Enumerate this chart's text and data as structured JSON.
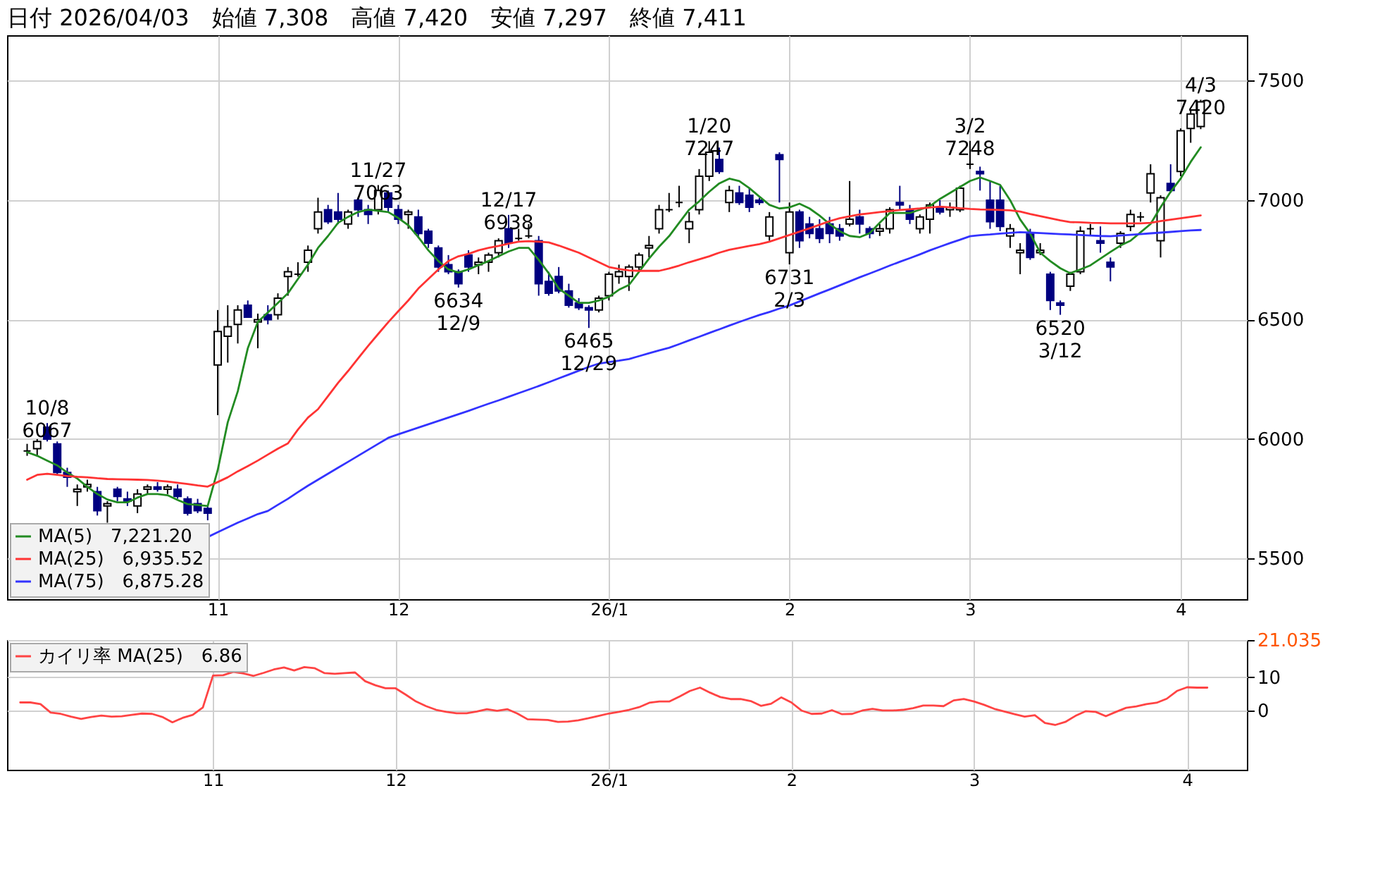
{
  "chart_data": [
    {
      "type": "candlestick",
      "title": "日付 2026/04/03　始値 7,308　高値 7,420　安値 7,297　終値 7,411",
      "categories": [
        null,
        null,
        null,
        null,
        null,
        null,
        null,
        null,
        null,
        null,
        null,
        null,
        null,
        null,
        null,
        null,
        null,
        null,
        null,
        "11",
        null,
        null,
        null,
        null,
        null,
        null,
        null,
        null,
        null,
        null,
        null,
        null,
        null,
        null,
        null,
        null,
        null,
        "12",
        null,
        null,
        null,
        null,
        null,
        null,
        null,
        null,
        null,
        null,
        null,
        null,
        null,
        null,
        null,
        null,
        null,
        null,
        null,
        null,
        "26/1",
        null,
        null,
        null,
        null,
        null,
        null,
        null,
        null,
        null,
        null,
        null,
        null,
        null,
        null,
        null,
        null,
        null,
        "2",
        null,
        null,
        null,
        null,
        null,
        null,
        null,
        null,
        null,
        null,
        null,
        null,
        null,
        null,
        null,
        null,
        null,
        "3",
        null,
        null,
        null,
        null,
        null,
        null,
        null,
        null,
        null,
        null,
        null,
        null,
        null,
        null,
        null,
        null,
        null,
        null,
        null,
        null,
        "4",
        null,
        null
      ],
      "ohlc": [
        [
          5950,
          5980,
          5930,
          5950
        ],
        [
          5960,
          6000,
          5930,
          5990
        ],
        [
          6050,
          6067,
          5990,
          6000
        ],
        [
          5980,
          5990,
          5850,
          5860
        ],
        [
          5860,
          5880,
          5800,
          5840
        ],
        [
          5780,
          5810,
          5720,
          5790
        ],
        [
          5800,
          5830,
          5780,
          5810
        ],
        [
          5780,
          5800,
          5680,
          5700
        ],
        [
          5720,
          5740,
          5650,
          5730
        ],
        [
          5790,
          5800,
          5740,
          5760
        ],
        [
          5750,
          5780,
          5720,
          5740
        ],
        [
          5720,
          5790,
          5690,
          5770
        ],
        [
          5790,
          5810,
          5770,
          5800
        ],
        [
          5800,
          5820,
          5780,
          5790
        ],
        [
          5790,
          5810,
          5770,
          5800
        ],
        [
          5790,
          5810,
          5750,
          5760
        ],
        [
          5750,
          5760,
          5680,
          5690
        ],
        [
          5730,
          5750,
          5690,
          5700
        ],
        [
          5710,
          5720,
          5660,
          5690
        ],
        [
          6310,
          6540,
          6100,
          6450
        ],
        [
          6430,
          6560,
          6320,
          6470
        ],
        [
          6480,
          6560,
          6400,
          6540
        ],
        [
          6560,
          6580,
          6510,
          6510
        ],
        [
          6490,
          6525,
          6380,
          6500
        ],
        [
          6520,
          6560,
          6480,
          6500
        ],
        [
          6520,
          6610,
          6500,
          6590
        ],
        [
          6680,
          6720,
          6600,
          6700
        ],
        [
          6690,
          6740,
          6680,
          6690
        ],
        [
          6740,
          6810,
          6700,
          6790
        ],
        [
          6880,
          7010,
          6860,
          6950
        ],
        [
          6960,
          6980,
          6900,
          6910
        ],
        [
          6950,
          7030,
          6900,
          6920
        ],
        [
          6900,
          6960,
          6880,
          6950
        ],
        [
          7000,
          7010,
          6930,
          6960
        ],
        [
          6960,
          6980,
          6900,
          6940
        ],
        [
          6960,
          7063,
          6940,
          7040
        ],
        [
          7030,
          7040,
          6950,
          6970
        ],
        [
          6960,
          6980,
          6900,
          6920
        ],
        [
          6940,
          6960,
          6880,
          6950
        ],
        [
          6930,
          6960,
          6840,
          6860
        ],
        [
          6870,
          6880,
          6800,
          6820
        ],
        [
          6800,
          6810,
          6700,
          6720
        ],
        [
          6730,
          6770,
          6690,
          6700
        ],
        [
          6700,
          6710,
          6634,
          6650
        ],
        [
          6770,
          6790,
          6700,
          6720
        ],
        [
          6730,
          6760,
          6690,
          6740
        ],
        [
          6740,
          6780,
          6700,
          6770
        ],
        [
          6780,
          6840,
          6760,
          6830
        ],
        [
          6880,
          6938,
          6800,
          6820
        ],
        [
          6840,
          6880,
          6830,
          6840
        ],
        [
          6850,
          6900,
          6840,
          6850
        ],
        [
          6830,
          6850,
          6600,
          6650
        ],
        [
          6660,
          6700,
          6600,
          6610
        ],
        [
          6680,
          6720,
          6610,
          6620
        ],
        [
          6620,
          6650,
          6550,
          6560
        ],
        [
          6570,
          6590,
          6540,
          6550
        ],
        [
          6550,
          6560,
          6465,
          6540
        ],
        [
          6540,
          6600,
          6530,
          6590
        ],
        [
          6600,
          6700,
          6580,
          6690
        ],
        [
          6680,
          6730,
          6650,
          6700
        ],
        [
          6680,
          6730,
          6620,
          6720
        ],
        [
          6720,
          6780,
          6700,
          6770
        ],
        [
          6800,
          6850,
          6760,
          6810
        ],
        [
          6880,
          6980,
          6860,
          6960
        ],
        [
          6960,
          7030,
          6950,
          6960
        ],
        [
          6990,
          7060,
          6970,
          6990
        ],
        [
          6880,
          6950,
          6820,
          6910
        ],
        [
          6960,
          7130,
          6940,
          7100
        ],
        [
          7100,
          7247,
          7080,
          7200
        ],
        [
          7170,
          7220,
          7110,
          7120
        ],
        [
          6990,
          7060,
          6950,
          7040
        ],
        [
          7030,
          7060,
          6980,
          6990
        ],
        [
          7020,
          7050,
          6950,
          6970
        ],
        [
          7000,
          7010,
          6980,
          6990
        ],
        [
          6850,
          6950,
          6830,
          6930
        ],
        [
          7190,
          7200,
          6990,
          7170
        ],
        [
          6780,
          6990,
          6731,
          6950
        ],
        [
          6950,
          6960,
          6800,
          6830
        ],
        [
          6900,
          6930,
          6840,
          6860
        ],
        [
          6880,
          6920,
          6820,
          6840
        ],
        [
          6900,
          6930,
          6820,
          6860
        ],
        [
          6880,
          6900,
          6830,
          6850
        ],
        [
          6900,
          7080,
          6890,
          6920
        ],
        [
          6930,
          6960,
          6860,
          6900
        ],
        [
          6880,
          6890,
          6840,
          6860
        ],
        [
          6870,
          6900,
          6850,
          6880
        ],
        [
          6880,
          6970,
          6860,
          6960
        ],
        [
          6990,
          7060,
          6960,
          6980
        ],
        [
          6960,
          6980,
          6900,
          6920
        ],
        [
          6880,
          6940,
          6860,
          6930
        ],
        [
          6920,
          6990,
          6860,
          6980
        ],
        [
          6970,
          7000,
          6940,
          6950
        ],
        [
          6960,
          6990,
          6930,
          6970
        ],
        [
          6960,
          7060,
          6950,
          7050
        ],
        [
          7150,
          7248,
          7130,
          7150
        ],
        [
          7120,
          7140,
          7040,
          7110
        ],
        [
          7000,
          7080,
          6880,
          6910
        ],
        [
          7000,
          7060,
          6870,
          6890
        ],
        [
          6850,
          6900,
          6800,
          6880
        ],
        [
          6780,
          6820,
          6690,
          6790
        ],
        [
          6860,
          6880,
          6750,
          6760
        ],
        [
          6780,
          6820,
          6770,
          6790
        ],
        [
          6690,
          6700,
          6540,
          6580
        ],
        [
          6570,
          6580,
          6520,
          6560
        ],
        [
          6640,
          6700,
          6620,
          6690
        ],
        [
          6700,
          6890,
          6690,
          6870
        ],
        [
          6880,
          6900,
          6850,
          6880
        ],
        [
          6830,
          6890,
          6780,
          6820
        ],
        [
          6740,
          6760,
          6660,
          6720
        ],
        [
          6820,
          6870,
          6800,
          6860
        ],
        [
          6890,
          6960,
          6870,
          6940
        ],
        [
          6930,
          6950,
          6910,
          6930
        ],
        [
          7030,
          7150,
          6990,
          7110
        ],
        [
          6830,
          7020,
          6760,
          7010
        ],
        [
          7070,
          7150,
          7030,
          7040
        ],
        [
          7120,
          7300,
          7100,
          7290
        ],
        [
          7300,
          7380,
          7240,
          7360
        ],
        [
          7308,
          7420,
          7297,
          7411
        ]
      ],
      "series": [
        {
          "name": "MA(5)　7,221.20",
          "type": "line",
          "color": "#228b22",
          "values": [
            5945,
            5930,
            5910,
            5890,
            5860,
            5835,
            5800,
            5770,
            5747,
            5735,
            5735,
            5755,
            5770,
            5770,
            5765,
            5745,
            5728,
            5724,
            5720,
            5870,
            6070,
            6200,
            6380,
            6490,
            6530,
            6570,
            6610,
            6670,
            6730,
            6800,
            6850,
            6905,
            6930,
            6950,
            6960,
            6955,
            6950,
            6925,
            6895,
            6845,
            6790,
            6745,
            6710,
            6697,
            6710,
            6728,
            6745,
            6765,
            6785,
            6800,
            6800,
            6750,
            6694,
            6630,
            6600,
            6570,
            6570,
            6580,
            6595,
            6625,
            6645,
            6700,
            6755,
            6805,
            6849,
            6905,
            6960,
            6995,
            7035,
            7070,
            7090,
            7080,
            7050,
            7015,
            6980,
            6965,
            6970,
            6985,
            6965,
            6935,
            6900,
            6870,
            6850,
            6845,
            6862,
            6905,
            6946,
            6946,
            6946,
            6960,
            6975,
            7005,
            7030,
            7055,
            7080,
            7095,
            7080,
            7064,
            7000,
            6919,
            6860,
            6780,
            6745,
            6715,
            6694,
            6710,
            6727,
            6755,
            6783,
            6810,
            6830,
            6865,
            6900,
            6970,
            7035,
            7090,
            7160,
            7221
          ]
        },
        {
          "name": "MA(25)　6,935.52",
          "type": "line",
          "color": "#ff3333",
          "values": [
            5830,
            5850,
            5855,
            5850,
            5845,
            5842,
            5840,
            5836,
            5833,
            5832,
            5831,
            5830,
            5829,
            5826,
            5822,
            5817,
            5812,
            5806,
            5801,
            5820,
            5840,
            5865,
            5887,
            5910,
            5935,
            5960,
            5982,
            6040,
            6090,
            6125,
            6180,
            6235,
            6285,
            6338,
            6390,
            6440,
            6489,
            6535,
            6580,
            6630,
            6670,
            6710,
            6745,
            6765,
            6775,
            6790,
            6800,
            6808,
            6818,
            6826,
            6828,
            6826,
            6823,
            6810,
            6795,
            6780,
            6760,
            6740,
            6720,
            6712,
            6706,
            6704,
            6704,
            6704,
            6714,
            6726,
            6740,
            6752,
            6765,
            6780,
            6792,
            6800,
            6808,
            6816,
            6826,
            6840,
            6854,
            6868,
            6882,
            6897,
            6912,
            6924,
            6932,
            6940,
            6945,
            6950,
            6954,
            6959,
            6962,
            6965,
            6969,
            6973,
            6970,
            6966,
            6963,
            6961,
            6960,
            6959,
            6957,
            6952,
            6942,
            6933,
            6924,
            6915,
            6908,
            6907,
            6905,
            6904,
            6903,
            6903,
            6903,
            6903,
            6905,
            6912,
            6918,
            6924,
            6930,
            6936
          ]
        },
        {
          "name": "MA(75)　6,875.28",
          "type": "line",
          "color": "#3333ff",
          "values": [
            null,
            null,
            null,
            null,
            null,
            null,
            null,
            null,
            null,
            null,
            null,
            null,
            null,
            null,
            null,
            null,
            null,
            null,
            5590,
            5610,
            5630,
            5650,
            5668,
            5686,
            5699,
            5725,
            5750,
            5778,
            5805,
            5830,
            5855,
            5880,
            5905,
            5930,
            5955,
            5980,
            6005,
            6020,
            6034,
            6048,
            6062,
            6076,
            6090,
            6104,
            6118,
            6133,
            6148,
            6162,
            6177,
            6192,
            6207,
            6222,
            6238,
            6254,
            6270,
            6286,
            6302,
            6316,
            6322,
            6328,
            6335,
            6347,
            6359,
            6371,
            6382,
            6397,
            6413,
            6428,
            6444,
            6459,
            6475,
            6490,
            6505,
            6519,
            6532,
            6546,
            6559,
            6576,
            6593,
            6610,
            6626,
            6643,
            6660,
            6677,
            6693,
            6709,
            6726,
            6742,
            6757,
            6773,
            6790,
            6805,
            6820,
            6834,
            6849,
            6853,
            6856,
            6860,
            6863,
            6866,
            6864,
            6862,
            6860,
            6858,
            6856,
            6854,
            6852,
            6850,
            6849,
            6852,
            6855,
            6858,
            6861,
            6864,
            6867,
            6870,
            6873,
            6875
          ]
        }
      ],
      "annotations": [
        {
          "text": "10/8\n6067",
          "y": 6067
        },
        {
          "text": "11/27\n7063",
          "y": 7063
        },
        {
          "text": "6634\n12/9",
          "y": 6634
        },
        {
          "text": "12/17\n6938",
          "y": 6938
        },
        {
          "text": "6465\n12/29",
          "y": 6465
        },
        {
          "text": "1/20\n7247",
          "y": 7247
        },
        {
          "text": "6731\n2/3",
          "y": 6731
        },
        {
          "text": "3/2\n7248",
          "y": 7248
        },
        {
          "text": "6520\n3/12",
          "y": 6520
        },
        {
          "text": "4/3\n7420",
          "y": 7420
        }
      ],
      "ylim": [
        5330,
        7690
      ],
      "yticks": [
        5500,
        6000,
        6500,
        7000,
        7500
      ],
      "grid": true,
      "legend": "bottom left"
    },
    {
      "type": "line",
      "categories": [
        null,
        null,
        null,
        null,
        null,
        null,
        null,
        null,
        null,
        null,
        null,
        null,
        null,
        null,
        null,
        null,
        null,
        null,
        null,
        "11",
        null,
        null,
        null,
        null,
        null,
        null,
        null,
        null,
        null,
        null,
        null,
        null,
        null,
        null,
        null,
        null,
        null,
        "12",
        null,
        null,
        null,
        null,
        null,
        null,
        null,
        null,
        null,
        null,
        null,
        null,
        null,
        null,
        null,
        null,
        null,
        null,
        null,
        null,
        "26/1",
        null,
        null,
        null,
        null,
        null,
        null,
        null,
        null,
        null,
        null,
        null,
        null,
        null,
        null,
        null,
        null,
        null,
        "2",
        null,
        null,
        null,
        null,
        null,
        null,
        null,
        null,
        null,
        null,
        null,
        null,
        null,
        null,
        null,
        null,
        null,
        "3",
        null,
        null,
        null,
        null,
        null,
        null,
        null,
        null,
        null,
        null,
        null,
        null,
        null,
        null,
        null,
        null,
        null,
        null,
        null,
        null,
        "4",
        null,
        null
      ],
      "series": [
        {
          "name": "カイリ率 MA(25)　6.86",
          "color": "#ff4444",
          "values": [
            2.5,
            2.5,
            2,
            -0.5,
            -0.9,
            -1.7,
            -2.4,
            -1.8,
            -1.4,
            -1.7,
            -1.6,
            -1.2,
            -0.8,
            -0.9,
            -1.8,
            -3.4,
            -2.1,
            -1.2,
            1,
            10.5,
            10.6,
            11.6,
            11.1,
            10.4,
            11.3,
            12.3,
            12.9,
            12,
            13,
            12.7,
            11.2,
            11,
            11.2,
            11.4,
            8.8,
            7.6,
            6.7,
            6.7,
            4.8,
            2.8,
            1.4,
            0.3,
            -0.3,
            -0.7,
            -0.7,
            -0.2,
            0.5,
            0,
            0.5,
            -0.8,
            -2.5,
            -2.6,
            -2.7,
            -3.3,
            -3.2,
            -2.8,
            -2.2,
            -1.5,
            -0.8,
            -0.3,
            0.3,
            1.1,
            2.4,
            2.8,
            2.8,
            4.3,
            5.9,
            6.9,
            5.4,
            4.1,
            3.5,
            3.5,
            2.9,
            1.5,
            2.1,
            4,
            2.5,
            0.1,
            -0.9,
            -0.8,
            0.2,
            -1,
            -0.9,
            0.1,
            0.6,
            0.1,
            0.1,
            0.3,
            0.8,
            1.6,
            1.6,
            1.4,
            3.1,
            3.5,
            2.8,
            1.8,
            0.6,
            -0.2,
            -1,
            -1.7,
            -1.3,
            -3.6,
            -4.2,
            -3.3,
            -1.5,
            -0.1,
            -0.3,
            -1.6,
            -0.3,
            0.9,
            1.3,
            2,
            2.4,
            3.6,
            5.9,
            7,
            6.9,
            6.9
          ]
        }
      ],
      "ylim": [
        -17.5,
        21.035
      ],
      "yticks": [
        0,
        10,
        {
          "value": 21.035,
          "label": "21.035"
        }
      ],
      "grid": true,
      "legend": "top left"
    }
  ]
}
